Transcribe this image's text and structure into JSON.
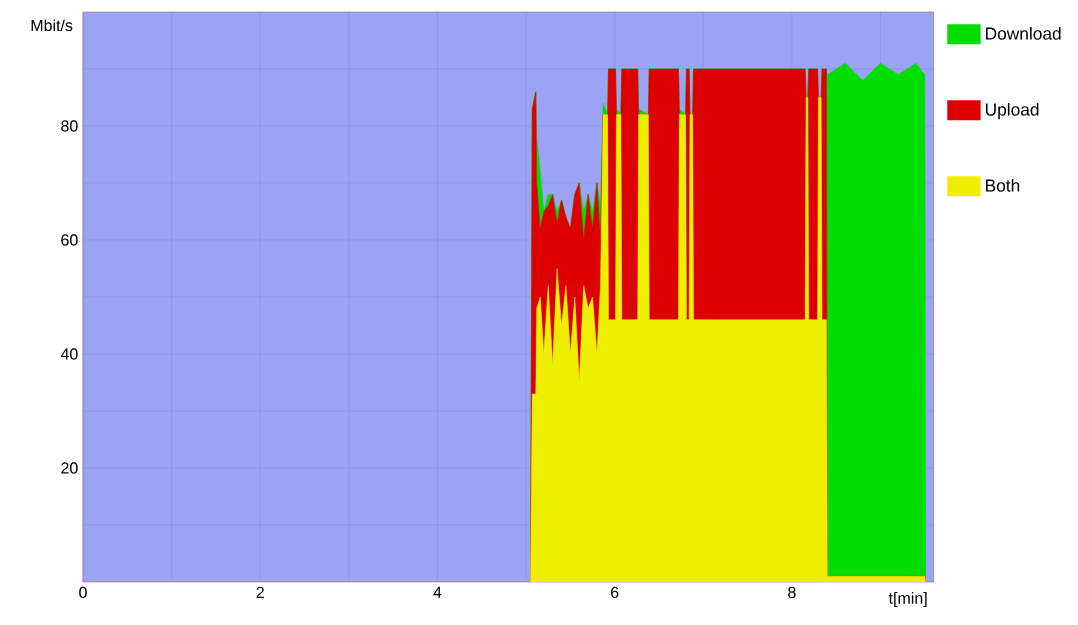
{
  "chart_data": {
    "type": "area",
    "stacked": true,
    "xlabel": "t[min]",
    "ylabel": "Mbit/s",
    "xlim": [
      0,
      9.6
    ],
    "ylim": [
      0,
      100
    ],
    "xticks": [
      0,
      {
        "value": 1,
        "label": null
      },
      2,
      {
        "value": 3,
        "label": null
      },
      4,
      {
        "value": 5,
        "label": null
      },
      6,
      {
        "value": 7,
        "label": null
      },
      8,
      {
        "value": 9,
        "label": null
      }
    ],
    "yticks": [
      {
        "value": 10,
        "label": null
      },
      20,
      {
        "value": 30,
        "label": null
      },
      40,
      {
        "value": 50,
        "label": null
      },
      60,
      {
        "value": 70,
        "label": null
      },
      80,
      {
        "value": 90,
        "label": null
      }
    ],
    "grid": true,
    "legend": "top right",
    "x": [
      0,
      5.05,
      5.07,
      5.11,
      5.12,
      5.16,
      5.2,
      5.25,
      5.3,
      5.35,
      5.4,
      5.45,
      5.5,
      5.55,
      5.6,
      5.65,
      5.7,
      5.75,
      5.8,
      5.84,
      5.87,
      5.92,
      5.93,
      6.01,
      6.02,
      6.07,
      6.08,
      6.26,
      6.27,
      6.38,
      6.39,
      6.72,
      6.73,
      6.8,
      6.81,
      6.84,
      6.85,
      6.88,
      6.89,
      8.15,
      8.16,
      8.18,
      8.19,
      8.29,
      8.3,
      8.33,
      8.34,
      8.39,
      8.4,
      8.6,
      8.8,
      9.0,
      9.2,
      9.4,
      9.5,
      9.51
    ],
    "series": [
      {
        "name": "Both",
        "color": "#eeee00",
        "values": [
          0,
          0,
          33,
          33,
          48,
          50,
          40,
          52,
          38,
          55,
          45,
          52,
          40,
          50,
          35,
          52,
          48,
          50,
          40,
          52,
          82,
          82,
          46,
          46,
          82,
          82,
          46,
          46,
          82,
          82,
          46,
          46,
          82,
          82,
          46,
          46,
          82,
          82,
          46,
          46,
          85,
          85,
          46,
          46,
          85,
          85,
          46,
          46,
          1,
          1,
          1,
          1,
          1,
          1,
          1,
          0
        ]
      },
      {
        "name": "Upload",
        "color": "#dd0000",
        "values": [
          0,
          0,
          50,
          53,
          22,
          12,
          25,
          14,
          30,
          8,
          22,
          12,
          22,
          18,
          35,
          8,
          20,
          12,
          30,
          8,
          0,
          0,
          44,
          44,
          0,
          0,
          44,
          44,
          0,
          0,
          44,
          44,
          0,
          0,
          44,
          44,
          0,
          0,
          44,
          44,
          0,
          0,
          44,
          44,
          0,
          0,
          44,
          44,
          0,
          0,
          0,
          0,
          0,
          0,
          0,
          0
        ]
      },
      {
        "name": "Download",
        "color": "#00dd00",
        "values": [
          0,
          0,
          0,
          0,
          8,
          10,
          0,
          2,
          0,
          2,
          0,
          0,
          0,
          0,
          0,
          5,
          0,
          3,
          0,
          6,
          2,
          0,
          0,
          0,
          1,
          0,
          0,
          0,
          1,
          0,
          0,
          0,
          1,
          0,
          0,
          0,
          0,
          0,
          0,
          0,
          0,
          0,
          0,
          0,
          0,
          0,
          0,
          0,
          88,
          90,
          87,
          90,
          88,
          90,
          88,
          0
        ]
      }
    ]
  }
}
